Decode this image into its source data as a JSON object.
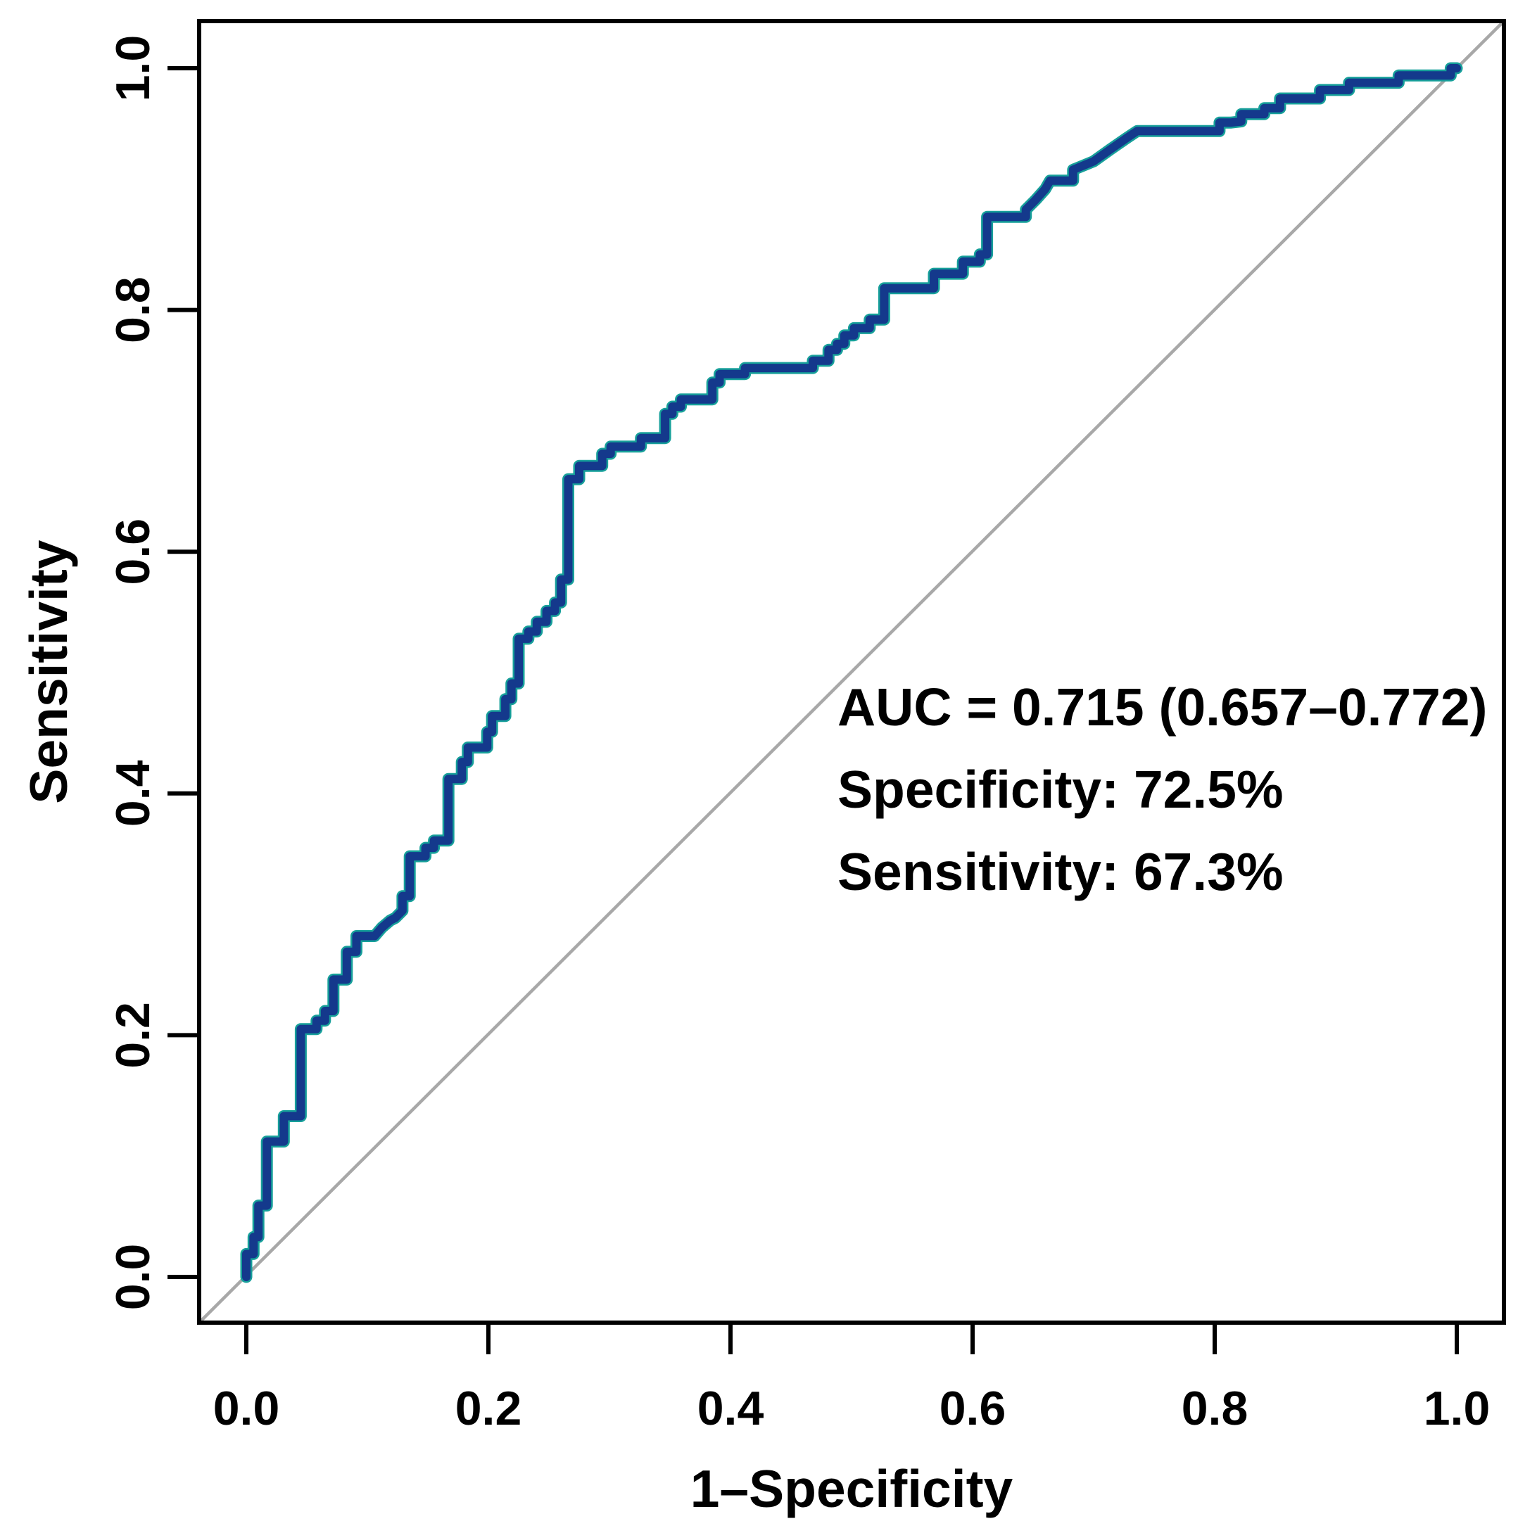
{
  "figure": {
    "background": "#ffffff",
    "annotation": {
      "auc_line": "AUC = 0.715 (0.657–0.772)",
      "specificity_line": "Specificity: 72.5%",
      "sensitivity_line": "Sensitivity: 67.3%"
    }
  },
  "colors": {
    "roc_line": "#14398c",
    "roc_line_edge": "#17a09a",
    "diagonal_line": "#a8a8a8",
    "axis": "#000000",
    "text": "#000000"
  },
  "chart_data": {
    "type": "line",
    "subtype": "roc-step-curve",
    "title": "",
    "xlabel": "1–Specificity",
    "ylabel": "Sensitivity",
    "xlim": [
      0,
      1
    ],
    "ylim": [
      0,
      1
    ],
    "grid": false,
    "diagonal_reference": true,
    "x_ticks": {
      "values": [
        0.0,
        0.2,
        0.4,
        0.6,
        0.8,
        1.0
      ],
      "labels": [
        "0.0",
        "0.2",
        "0.4",
        "0.6",
        "0.8",
        "1.0"
      ]
    },
    "y_ticks": {
      "values": [
        0.0,
        0.2,
        0.4,
        0.6,
        0.8,
        1.0
      ],
      "labels": [
        "0.0",
        "0.2",
        "0.4",
        "0.6",
        "0.8",
        "1.0"
      ]
    },
    "auc": 0.715,
    "auc_ci_low": 0.657,
    "auc_ci_high": 0.772,
    "specificity_pct": 72.5,
    "sensitivity_pct": 67.3,
    "annotation_lines": [
      "AUC = 0.715 (0.657–0.772)",
      "Specificity: 72.5%",
      "Sensitivity: 67.3%"
    ],
    "series": [
      {
        "name": "ROC curve",
        "points": [
          [
            0.0,
            0.0
          ],
          [
            0.0,
            0.019
          ],
          [
            0.006,
            0.019
          ],
          [
            0.006,
            0.033
          ],
          [
            0.01,
            0.033
          ],
          [
            0.01,
            0.059
          ],
          [
            0.017,
            0.059
          ],
          [
            0.017,
            0.112
          ],
          [
            0.031,
            0.112
          ],
          [
            0.031,
            0.133
          ],
          [
            0.045,
            0.133
          ],
          [
            0.045,
            0.205
          ],
          [
            0.058,
            0.205
          ],
          [
            0.058,
            0.212
          ],
          [
            0.065,
            0.212
          ],
          [
            0.065,
            0.22
          ],
          [
            0.072,
            0.22
          ],
          [
            0.072,
            0.246
          ],
          [
            0.083,
            0.246
          ],
          [
            0.083,
            0.269
          ],
          [
            0.091,
            0.269
          ],
          [
            0.091,
            0.282
          ],
          [
            0.106,
            0.282
          ],
          [
            0.112,
            0.289
          ],
          [
            0.119,
            0.295
          ],
          [
            0.123,
            0.297
          ],
          [
            0.129,
            0.303
          ],
          [
            0.129,
            0.315
          ],
          [
            0.135,
            0.315
          ],
          [
            0.135,
            0.348
          ],
          [
            0.148,
            0.348
          ],
          [
            0.148,
            0.355
          ],
          [
            0.155,
            0.355
          ],
          [
            0.155,
            0.361
          ],
          [
            0.167,
            0.361
          ],
          [
            0.167,
            0.412
          ],
          [
            0.178,
            0.412
          ],
          [
            0.178,
            0.426
          ],
          [
            0.183,
            0.426
          ],
          [
            0.183,
            0.438
          ],
          [
            0.199,
            0.438
          ],
          [
            0.199,
            0.451
          ],
          [
            0.203,
            0.451
          ],
          [
            0.203,
            0.464
          ],
          [
            0.214,
            0.464
          ],
          [
            0.214,
            0.478
          ],
          [
            0.219,
            0.478
          ],
          [
            0.219,
            0.491
          ],
          [
            0.225,
            0.491
          ],
          [
            0.225,
            0.528
          ],
          [
            0.233,
            0.528
          ],
          [
            0.233,
            0.534
          ],
          [
            0.24,
            0.534
          ],
          [
            0.24,
            0.542
          ],
          [
            0.248,
            0.542
          ],
          [
            0.248,
            0.551
          ],
          [
            0.255,
            0.551
          ],
          [
            0.255,
            0.558
          ],
          [
            0.26,
            0.558
          ],
          [
            0.26,
            0.577
          ],
          [
            0.266,
            0.577
          ],
          [
            0.266,
            0.66
          ],
          [
            0.275,
            0.66
          ],
          [
            0.275,
            0.671
          ],
          [
            0.294,
            0.671
          ],
          [
            0.294,
            0.681
          ],
          [
            0.301,
            0.681
          ],
          [
            0.301,
            0.687
          ],
          [
            0.326,
            0.687
          ],
          [
            0.326,
            0.694
          ],
          [
            0.346,
            0.694
          ],
          [
            0.346,
            0.714
          ],
          [
            0.352,
            0.714
          ],
          [
            0.352,
            0.72
          ],
          [
            0.359,
            0.72
          ],
          [
            0.359,
            0.726
          ],
          [
            0.385,
            0.726
          ],
          [
            0.385,
            0.74
          ],
          [
            0.391,
            0.74
          ],
          [
            0.391,
            0.747
          ],
          [
            0.412,
            0.747
          ],
          [
            0.412,
            0.752
          ],
          [
            0.468,
            0.752
          ],
          [
            0.468,
            0.758
          ],
          [
            0.481,
            0.758
          ],
          [
            0.481,
            0.767
          ],
          [
            0.488,
            0.767
          ],
          [
            0.488,
            0.772
          ],
          [
            0.494,
            0.772
          ],
          [
            0.494,
            0.779
          ],
          [
            0.502,
            0.779
          ],
          [
            0.502,
            0.785
          ],
          [
            0.515,
            0.785
          ],
          [
            0.515,
            0.792
          ],
          [
            0.527,
            0.792
          ],
          [
            0.527,
            0.818
          ],
          [
            0.568,
            0.818
          ],
          [
            0.568,
            0.83
          ],
          [
            0.592,
            0.83
          ],
          [
            0.592,
            0.84
          ],
          [
            0.606,
            0.84
          ],
          [
            0.606,
            0.846
          ],
          [
            0.612,
            0.846
          ],
          [
            0.612,
            0.877
          ],
          [
            0.644,
            0.877
          ],
          [
            0.644,
            0.883
          ],
          [
            0.652,
            0.891
          ],
          [
            0.66,
            0.9
          ],
          [
            0.664,
            0.907
          ],
          [
            0.683,
            0.907
          ],
          [
            0.683,
            0.916
          ],
          [
            0.7,
            0.923
          ],
          [
            0.714,
            0.933
          ],
          [
            0.727,
            0.942
          ],
          [
            0.736,
            0.948
          ],
          [
            0.804,
            0.948
          ],
          [
            0.804,
            0.955
          ],
          [
            0.813,
            0.955
          ],
          [
            0.822,
            0.956
          ],
          [
            0.822,
            0.962
          ],
          [
            0.841,
            0.962
          ],
          [
            0.841,
            0.967
          ],
          [
            0.854,
            0.967
          ],
          [
            0.854,
            0.975
          ],
          [
            0.887,
            0.975
          ],
          [
            0.887,
            0.982
          ],
          [
            0.911,
            0.982
          ],
          [
            0.911,
            0.988
          ],
          [
            0.952,
            0.988
          ],
          [
            0.952,
            0.994
          ],
          [
            0.995,
            0.994
          ],
          [
            0.995,
            1.0
          ],
          [
            1.0,
            1.0
          ]
        ]
      }
    ]
  }
}
